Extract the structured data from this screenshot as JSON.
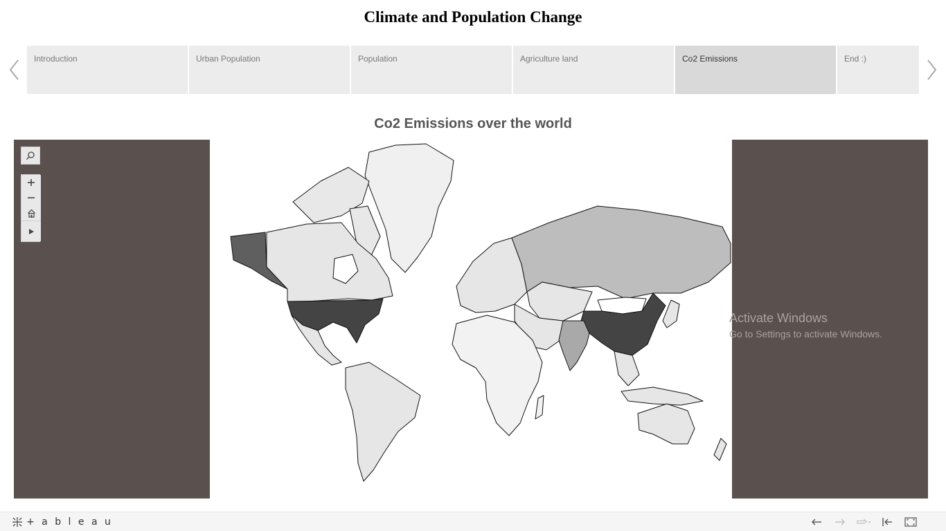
{
  "story": {
    "title": "Climate and Population Change",
    "points": [
      {
        "label": "Introduction",
        "active": false
      },
      {
        "label": "Urban Population",
        "active": false
      },
      {
        "label": "Population",
        "active": false
      },
      {
        "label": "Agriculture land",
        "active": false
      },
      {
        "label": "Co2 Emissions",
        "active": true
      },
      {
        "label": "End :)",
        "active": false
      }
    ],
    "prev_icon": "chevron-left-icon",
    "next_icon": "chevron-right-icon"
  },
  "map": {
    "title": "Co2 Emissions over the world",
    "color_scale": {
      "high": "#444444",
      "upper_mid": "#5f5f5f",
      "mid": "#a9a9a9",
      "low_mid": "#bdbdbd",
      "low": "#e6e6e6",
      "border": "#111111"
    },
    "panel_color": "#5a504d",
    "tools": {
      "search": "search-icon",
      "zoom_in": "plus-icon",
      "zoom_out": "minus-icon",
      "home": "home-icon",
      "pan": "play-icon"
    }
  },
  "watermark": {
    "title": "Activate Windows",
    "subtitle": "Go to Settings to activate Windows."
  },
  "footer": {
    "brand": "+ a b l e a u",
    "buttons": [
      "undo-icon",
      "redo-icon",
      "revert-icon",
      "reset-icon",
      "fullscreen-icon"
    ]
  }
}
